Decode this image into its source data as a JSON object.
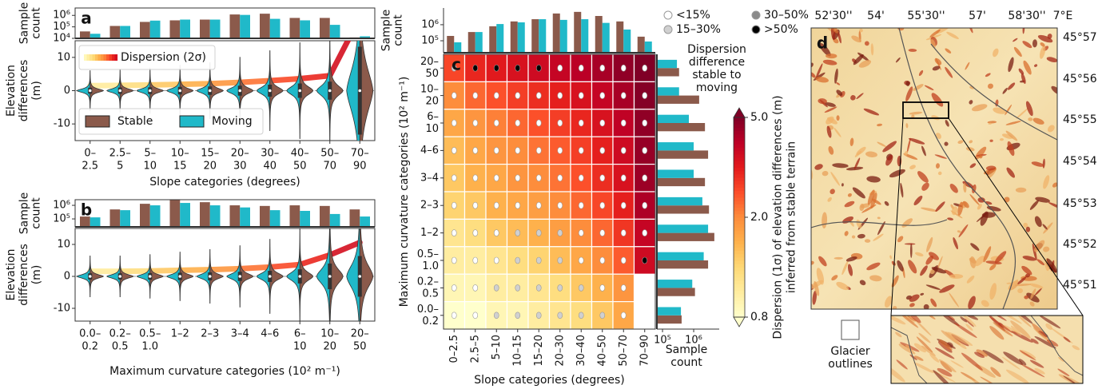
{
  "chart_data": [
    {
      "panel": "a",
      "type": "violin",
      "legend": true,
      "categories": [
        [
          "0–",
          "2.5"
        ],
        [
          "2.5–",
          "5"
        ],
        [
          "5–",
          "10"
        ],
        [
          "10–",
          "15"
        ],
        [
          "15–",
          "20"
        ],
        [
          "20–",
          "30"
        ],
        [
          "30–",
          "40"
        ],
        [
          "40–",
          "50"
        ],
        [
          "50–",
          "70"
        ],
        [
          "70–",
          "90"
        ]
      ],
      "xlabel": "Slope categories (degrees)",
      "count_ylabel": [
        "Sample",
        "count"
      ],
      "count_ylim": [
        10000,
        4400000
      ],
      "count_yticks": [
        {
          "value": 10000,
          "label": "10⁴"
        },
        {
          "value": 100000,
          "label": "10⁵"
        },
        {
          "value": 1000000,
          "label": "10⁶"
        }
      ],
      "ylabel": [
        "Elevation",
        "differences",
        "(m)"
      ],
      "ylim": [
        -15,
        15
      ],
      "yticks": [
        -10,
        0,
        10
      ],
      "dispersion_label": "Dispersion (2σ)",
      "dispersion": [
        1.5,
        1.6,
        1.7,
        1.9,
        2.1,
        2.5,
        3.0,
        3.6,
        4.5,
        22
      ],
      "series": [
        {
          "name": "Stable",
          "color": "#8b5a4b",
          "counts": [
            40000,
            120000,
            270000,
            370000,
            430000,
            1200000,
            1400000,
            600000,
            600000,
            12000
          ]
        },
        {
          "name": "Moving",
          "color": "#20b9c9",
          "counts": [
            25000,
            120000,
            350000,
            430000,
            430000,
            1100000,
            500000,
            370000,
            150000,
            15000
          ]
        }
      ]
    },
    {
      "panel": "b",
      "type": "violin",
      "legend": false,
      "categories": [
        [
          "0.0–",
          "0.2"
        ],
        [
          "0.2–",
          "0.5"
        ],
        [
          "0.5–",
          "1.0"
        ],
        [
          "1–2"
        ],
        [
          "2–3"
        ],
        [
          "3–4"
        ],
        [
          "4–6"
        ],
        [
          "6–",
          "10"
        ],
        [
          "10–",
          "20"
        ],
        [
          "20–",
          "50"
        ]
      ],
      "xlabel": "Maximum curvature categories (10² m⁻¹)",
      "count_ylabel": [
        "Sample",
        "count"
      ],
      "count_ylim": [
        26000,
        2600000
      ],
      "count_yticks": [
        {
          "value": 100000,
          "label": "10⁵"
        },
        {
          "value": 1000000,
          "label": "10⁶"
        }
      ],
      "ylabel": [
        "Elevation",
        "differences",
        "(m)"
      ],
      "ylim": [
        -14,
        15
      ],
      "yticks": [
        -10,
        0,
        10
      ],
      "dispersion": [
        1.6,
        1.6,
        1.7,
        1.9,
        2.1,
        2.4,
        2.9,
        3.7,
        6.7,
        10.6
      ],
      "series": [
        {
          "name": "Stable",
          "color": "#8b5a4b",
          "counts": [
            150000,
            500000,
            1300000,
            2500000,
            1700000,
            1000000,
            900000,
            1000000,
            900000,
            500000
          ]
        },
        {
          "name": "Moving",
          "color": "#20b9c9",
          "counts": [
            130000,
            440000,
            1000000,
            1500000,
            1000000,
            700000,
            440000,
            390000,
            230000,
            150000
          ]
        }
      ]
    },
    {
      "panel": "c",
      "type": "heatmap",
      "xcategories": [
        "0–2.5",
        "2.5–5",
        "5–10",
        "10–15",
        "15–20",
        "20–30",
        "30–40",
        "40–50",
        "50–70",
        "70–90"
      ],
      "ycategories": [
        [
          "20–",
          "50"
        ],
        [
          "10–",
          "20"
        ],
        [
          "6–",
          "10"
        ],
        [
          "4–6"
        ],
        [
          "3–4"
        ],
        [
          "2–3"
        ],
        [
          "1–2"
        ],
        [
          "0.5–",
          "1.0"
        ],
        [
          "0.2–",
          "0.5"
        ],
        [
          "0.0–",
          "0.2"
        ]
      ],
      "xlabel": "Slope categories (degrees)",
      "ylabel": "Maximum curvature categories (10² m⁻¹)",
      "values": [
        [
          2.6,
          3.0,
          3.2,
          3.4,
          3.6,
          3.8,
          4.0,
          4.3,
          4.7,
          5.0
        ],
        [
          2.0,
          2.3,
          2.5,
          2.7,
          2.9,
          3.1,
          3.4,
          3.8,
          4.3,
          4.9
        ],
        [
          1.7,
          1.9,
          2.1,
          2.3,
          2.5,
          2.7,
          3.0,
          3.4,
          3.9,
          4.7
        ],
        [
          1.5,
          1.7,
          1.9,
          2.0,
          2.2,
          2.4,
          2.7,
          3.1,
          3.6,
          4.6
        ],
        [
          1.4,
          1.6,
          1.7,
          1.9,
          2.0,
          2.2,
          2.5,
          2.9,
          3.4,
          4.5
        ],
        [
          1.3,
          1.4,
          1.6,
          1.7,
          1.8,
          2.0,
          2.3,
          2.6,
          3.1,
          4.2
        ],
        [
          1.1,
          1.2,
          1.4,
          1.5,
          1.6,
          1.8,
          2.0,
          2.3,
          2.8,
          3.8
        ],
        [
          1.0,
          1.0,
          1.1,
          1.2,
          1.3,
          1.5,
          1.7,
          2.0,
          2.4,
          3.6
        ],
        [
          0.9,
          0.9,
          1.0,
          1.0,
          1.1,
          1.2,
          1.4,
          1.6,
          1.9,
          null
        ],
        [
          0.8,
          0.8,
          0.9,
          0.9,
          1.0,
          1.1,
          1.2,
          1.4,
          1.7,
          null
        ]
      ],
      "classes": [
        [
          1,
          3,
          3,
          3,
          3,
          0,
          0,
          0,
          0,
          0
        ],
        [
          0,
          0,
          0,
          0,
          0,
          0,
          0,
          0,
          0,
          0
        ],
        [
          0,
          0,
          0,
          0,
          0,
          0,
          0,
          0,
          0,
          0
        ],
        [
          0,
          0,
          0,
          0,
          0,
          0,
          0,
          0,
          0,
          0
        ],
        [
          0,
          0,
          0,
          0,
          0,
          0,
          0,
          0,
          0,
          0
        ],
        [
          0,
          0,
          0,
          0,
          0,
          0,
          0,
          0,
          0,
          0
        ],
        [
          0,
          0,
          0,
          1,
          1,
          1,
          0,
          0,
          0,
          0
        ],
        [
          0,
          0,
          0,
          1,
          1,
          1,
          0,
          0,
          0,
          3
        ],
        [
          0,
          0,
          1,
          1,
          1,
          1,
          1,
          0,
          0,
          null
        ],
        [
          0,
          0,
          1,
          1,
          1,
          1,
          1,
          1,
          0,
          null
        ]
      ],
      "class_title": [
        "Dispersion",
        "difference",
        "stable to",
        "moving"
      ],
      "class_labels": [
        "<15%",
        "15–30%",
        "30–50%",
        ">50%"
      ],
      "class_colors": [
        "#ffffff",
        "#d0d0d0",
        "#8a8a8a",
        "#000000"
      ],
      "clim": [
        0.8,
        5
      ],
      "log_color": true,
      "cticks": [
        0.8,
        {
          "value": 2,
          "label": "2.0"
        },
        {
          "value": 5,
          "label": "5.0"
        }
      ],
      "colorbar_label": [
        "Dispersion (1σ) of elevation differences (m)",
        "inferred from stable terrain"
      ],
      "top_ylabel": [
        "Sample",
        "count"
      ],
      "top_ylim": [
        18000,
        11000000
      ],
      "top_yticks": [
        {
          "value": 100000,
          "label": "10⁵"
        },
        {
          "value": 1000000,
          "label": "10⁶"
        }
      ],
      "right_xlabel": [
        "Sample",
        "count"
      ],
      "right_xlim": [
        66000,
        6600000
      ],
      "right_xticks": [
        {
          "value": 100000,
          "label": "10⁵"
        },
        {
          "value": 1000000,
          "label": "10⁶"
        }
      ],
      "series": [
        {
          "name": "Stable",
          "color": "#8b5a4b",
          "top_counts": [
            200000,
            350000,
            800000,
            1600000,
            2200000,
            5000000,
            6300000,
            3500000,
            1600000,
            180000
          ],
          "right_counts": [
            340000,
            1500000,
            2300000,
            2900000,
            2300000,
            3100000,
            4600000,
            2900000,
            1100000,
            410000
          ]
        },
        {
          "name": "Moving",
          "color": "#20b9c9",
          "top_counts": [
            80000,
            350000,
            1100000,
            1400000,
            2200000,
            2000000,
            2200000,
            1300000,
            500000,
            90000
          ],
          "right_counts": [
            290000,
            340000,
            700000,
            1000000,
            1000000,
            1900000,
            2900000,
            2100000,
            900000,
            390000
          ]
        }
      ]
    }
  ],
  "map": {
    "panel": "d",
    "lon_labels": [
      "52'30''",
      "54'",
      "55'30''",
      "57'",
      "58'30''",
      "7°E"
    ],
    "lat_labels": [
      "45°57",
      "45°56",
      "45°55",
      "45°54",
      "45°53",
      "45°52",
      "45°51"
    ],
    "legend_label": [
      "Glacier",
      "outlines"
    ]
  }
}
